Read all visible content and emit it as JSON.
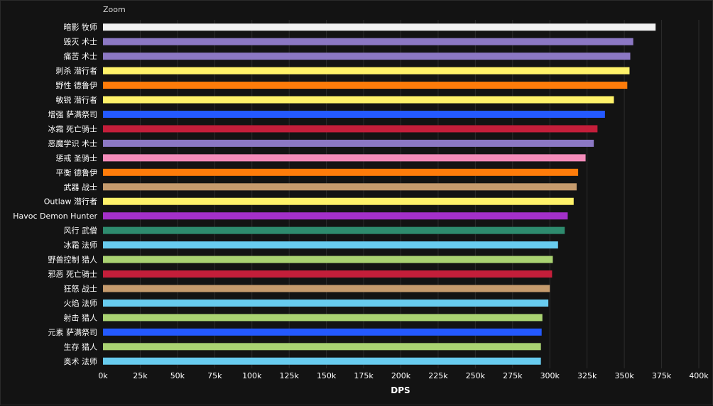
{
  "zoom_label": "Zoom",
  "chart_data": {
    "type": "bar",
    "orientation": "horizontal",
    "title": "",
    "xlabel": "DPS",
    "ylabel": "",
    "xlim": [
      0,
      400000
    ],
    "x_ticks": [
      0,
      25000,
      50000,
      75000,
      100000,
      125000,
      150000,
      175000,
      200000,
      225000,
      250000,
      275000,
      300000,
      325000,
      350000,
      375000,
      400000
    ],
    "x_tick_labels": [
      "0k",
      "25k",
      "50k",
      "75k",
      "100k",
      "125k",
      "150k",
      "175k",
      "200k",
      "225k",
      "250k",
      "275k",
      "300k",
      "325k",
      "350k",
      "375k",
      "400k"
    ],
    "grid": true,
    "legend": "none",
    "categories": [
      "暗影 牧师",
      "毁灭 术士",
      "痛苦 术士",
      "刺杀 潜行者",
      "野性 德鲁伊",
      "敏锐 潜行者",
      "增强 萨满祭司",
      "冰霜 死亡骑士",
      "恶魔学识 术士",
      "惩戒 圣骑士",
      "平衡 德鲁伊",
      "武器 战士",
      "Outlaw 潜行者",
      "Havoc Demon Hunter",
      "风行 武僧",
      "冰霜 法师",
      "野兽控制 猎人",
      "邪恶 死亡骑士",
      "狂怒 战士",
      "火焰 法师",
      "射击 猎人",
      "元素 萨满祭司",
      "生存 猎人",
      "奥术 法师"
    ],
    "values": [
      371000,
      356000,
      354000,
      353500,
      352000,
      343000,
      337000,
      332000,
      329500,
      324000,
      319000,
      318000,
      316000,
      312000,
      310000,
      305500,
      302000,
      301500,
      300000,
      299000,
      295000,
      294500,
      294000,
      294000
    ],
    "colors": [
      "#f2f2f2",
      "#8c78c4",
      "#8c78c4",
      "#fff26a",
      "#ff7c0a",
      "#fff26a",
      "#2459ff",
      "#c41e3a",
      "#8c78c4",
      "#f48cba",
      "#ff7c0a",
      "#c69b6d",
      "#fff26a",
      "#a330c9",
      "#2e8b6e",
      "#68ccef",
      "#aad372",
      "#c41e3a",
      "#c69b6d",
      "#68ccef",
      "#aad372",
      "#2459ff",
      "#aad372",
      "#68ccef"
    ]
  }
}
